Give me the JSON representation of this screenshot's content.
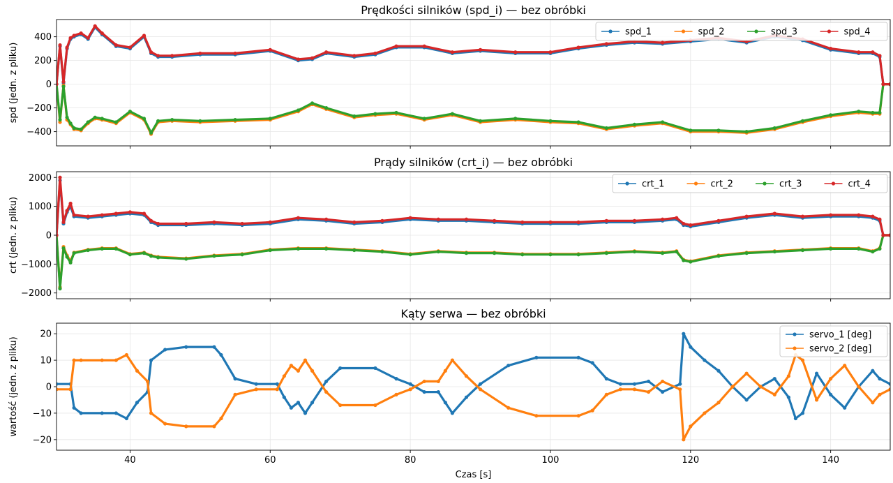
{
  "chart_data": [
    {
      "type": "line",
      "title": "Prędkości silników (spd_i) — bez obróbki",
      "xlabel": "",
      "ylabel": "spd (jedn. z pliku)",
      "xlim": [
        29.5,
        148.5
      ],
      "ylim": [
        -520,
        545
      ],
      "yticks": [
        -400,
        -200,
        0,
        200,
        400
      ],
      "xticks": [
        40,
        60,
        80,
        100,
        120,
        140
      ],
      "show_xtick_labels": false,
      "legend": "top-right",
      "legend_cols": 4,
      "x": [
        29.5,
        30,
        30.5,
        31,
        31.5,
        32,
        33,
        34,
        35,
        36,
        38,
        40,
        42,
        43,
        44,
        46,
        50,
        55,
        60,
        64,
        66,
        68,
        72,
        75,
        78,
        82,
        86,
        90,
        95,
        100,
        104,
        108,
        112,
        116,
        120,
        124,
        128,
        132,
        136,
        140,
        144,
        146,
        147,
        147.5,
        148.5
      ],
      "series": [
        {
          "name": "spd_1",
          "color": "#1f77b4",
          "values": [
            0,
            320,
            10,
            300,
            380,
            400,
            420,
            380,
            480,
            420,
            320,
            300,
            400,
            260,
            230,
            230,
            250,
            250,
            280,
            200,
            210,
            260,
            230,
            250,
            310,
            310,
            260,
            280,
            260,
            260,
            300,
            330,
            350,
            340,
            360,
            380,
            350,
            400,
            370,
            290,
            260,
            260,
            230,
            0,
            0
          ]
        },
        {
          "name": "spd_2",
          "color": "#ff7f0e",
          "values": [
            0,
            -320,
            -10,
            -300,
            -340,
            -380,
            -390,
            -330,
            -290,
            -300,
            -330,
            -240,
            -300,
            -420,
            -320,
            -310,
            -320,
            -310,
            -300,
            -230,
            -170,
            -210,
            -280,
            -260,
            -250,
            -300,
            -260,
            -320,
            -300,
            -320,
            -330,
            -380,
            -350,
            -330,
            -400,
            -400,
            -410,
            -380,
            -320,
            -270,
            -240,
            -250,
            -250,
            0,
            0
          ]
        },
        {
          "name": "spd_3",
          "color": "#2ca02c",
          "values": [
            0,
            -300,
            -20,
            -280,
            -330,
            -370,
            -380,
            -320,
            -280,
            -290,
            -320,
            -230,
            -290,
            -410,
            -310,
            -300,
            -310,
            -300,
            -290,
            -220,
            -160,
            -200,
            -270,
            -250,
            -240,
            -290,
            -250,
            -310,
            -290,
            -310,
            -320,
            -370,
            -340,
            -320,
            -390,
            -390,
            -400,
            -370,
            -310,
            -260,
            -230,
            -240,
            -240,
            0,
            0
          ]
        },
        {
          "name": "spd_4",
          "color": "#d62728",
          "values": [
            0,
            330,
            20,
            310,
            390,
            410,
            430,
            390,
            490,
            430,
            330,
            310,
            410,
            270,
            240,
            240,
            260,
            260,
            290,
            210,
            220,
            270,
            240,
            260,
            320,
            320,
            270,
            290,
            270,
            270,
            310,
            340,
            360,
            350,
            370,
            390,
            360,
            410,
            380,
            300,
            270,
            270,
            240,
            0,
            0
          ]
        }
      ]
    },
    {
      "type": "line",
      "title": "Prądy silników (crt_i) — bez obróbki",
      "xlabel": "",
      "ylabel": "crt (jedn. z pliku)",
      "xlim": [
        29.5,
        148.5
      ],
      "ylim": [
        -2200,
        2200
      ],
      "yticks": [
        -2000,
        -1000,
        0,
        1000,
        2000
      ],
      "xticks": [
        40,
        60,
        80,
        100,
        120,
        140
      ],
      "show_xtick_labels": false,
      "legend": "top-right",
      "legend_cols": 4,
      "x": [
        29.5,
        30,
        30.5,
        31,
        31.5,
        32,
        34,
        36,
        38,
        40,
        42,
        43,
        44,
        48,
        52,
        56,
        60,
        64,
        68,
        72,
        76,
        80,
        84,
        88,
        92,
        96,
        100,
        104,
        108,
        112,
        116,
        118,
        119,
        120,
        124,
        128,
        132,
        136,
        140,
        144,
        146,
        147,
        147.5,
        148.5
      ],
      "series": [
        {
          "name": "crt_1",
          "color": "#1f77b4",
          "values": [
            0,
            1900,
            400,
            800,
            1000,
            650,
            600,
            650,
            700,
            750,
            700,
            450,
            350,
            350,
            400,
            350,
            400,
            550,
            500,
            400,
            450,
            550,
            500,
            500,
            450,
            400,
            400,
            400,
            450,
            450,
            500,
            550,
            350,
            300,
            450,
            600,
            700,
            600,
            650,
            650,
            600,
            500,
            0,
            0
          ]
        },
        {
          "name": "crt_2",
          "color": "#ff7f0e",
          "values": [
            0,
            -1800,
            -400,
            -700,
            -900,
            -600,
            -500,
            -450,
            -450,
            -650,
            -600,
            -700,
            -750,
            -800,
            -700,
            -650,
            -500,
            -450,
            -450,
            -500,
            -550,
            -650,
            -550,
            -600,
            -600,
            -650,
            -650,
            -650,
            -600,
            -550,
            -600,
            -550,
            -850,
            -900,
            -700,
            -600,
            -550,
            -500,
            -450,
            -450,
            -550,
            -450,
            0,
            0
          ]
        },
        {
          "name": "crt_3",
          "color": "#2ca02c",
          "values": [
            0,
            -1850,
            -450,
            -750,
            -950,
            -620,
            -520,
            -470,
            -470,
            -670,
            -620,
            -720,
            -770,
            -820,
            -720,
            -670,
            -520,
            -470,
            -470,
            -520,
            -570,
            -670,
            -570,
            -620,
            -620,
            -670,
            -670,
            -670,
            -620,
            -570,
            -620,
            -570,
            -870,
            -920,
            -720,
            -620,
            -570,
            -520,
            -470,
            -470,
            -570,
            -470,
            0,
            0
          ]
        },
        {
          "name": "crt_4",
          "color": "#d62728",
          "values": [
            0,
            2000,
            450,
            850,
            1100,
            700,
            650,
            700,
            750,
            800,
            750,
            500,
            400,
            400,
            450,
            400,
            450,
            600,
            550,
            450,
            500,
            600,
            550,
            550,
            500,
            450,
            450,
            450,
            500,
            500,
            550,
            600,
            400,
            350,
            500,
            650,
            750,
            650,
            700,
            700,
            650,
            550,
            0,
            0
          ]
        }
      ]
    },
    {
      "type": "line",
      "title": "Kąty serwa — bez obróbki",
      "xlabel": "Czas [s]",
      "ylabel": "wartość (jedn. z pliku)",
      "xlim": [
        29.5,
        148.5
      ],
      "ylim": [
        -24,
        24
      ],
      "yticks": [
        -20,
        -10,
        0,
        10,
        20
      ],
      "xticks": [
        40,
        60,
        80,
        100,
        120,
        140
      ],
      "show_xtick_labels": true,
      "legend": "top-right",
      "legend_cols": 1,
      "x": [
        29.5,
        31.5,
        32,
        33,
        36,
        38,
        39.5,
        41,
        42.5,
        43,
        45,
        48,
        52,
        53,
        55,
        58,
        61,
        62,
        63,
        64,
        65,
        66,
        68,
        70,
        75,
        78,
        80,
        82,
        84,
        85,
        86,
        88,
        90,
        94,
        98,
        104,
        106,
        108,
        110,
        112,
        114,
        116,
        118.5,
        119,
        120,
        122,
        124,
        126,
        128,
        130,
        132,
        134,
        135,
        136,
        138,
        140,
        142,
        144,
        146,
        147,
        148.5
      ],
      "series": [
        {
          "name": "servo_1 [deg]",
          "color": "#1f77b4",
          "values": [
            1,
            1,
            -8,
            -10,
            -10,
            -10,
            -12,
            -6,
            -2,
            10,
            14,
            15,
            15,
            12,
            3,
            1,
            1,
            -4,
            -8,
            -6,
            -10,
            -6,
            2,
            7,
            7,
            3,
            1,
            -2,
            -2,
            -6,
            -10,
            -4,
            1,
            8,
            11,
            11,
            9,
            3,
            1,
            1,
            2,
            -2,
            1,
            20,
            15,
            10,
            6,
            0,
            -5,
            0,
            3,
            -4,
            -12,
            -10,
            5,
            -3,
            -8,
            0,
            6,
            3,
            1
          ]
        },
        {
          "name": "servo_2 [deg]",
          "color": "#ff7f0e",
          "values": [
            -1,
            -1,
            10,
            10,
            10,
            10,
            12,
            6,
            2,
            -10,
            -14,
            -15,
            -15,
            -12,
            -3,
            -1,
            -1,
            4,
            8,
            6,
            10,
            6,
            -2,
            -7,
            -7,
            -3,
            -1,
            2,
            2,
            6,
            10,
            4,
            -1,
            -8,
            -11,
            -11,
            -9,
            -3,
            -1,
            -1,
            -2,
            2,
            -1,
            -20,
            -15,
            -10,
            -6,
            0,
            5,
            0,
            -3,
            4,
            12,
            10,
            -5,
            3,
            8,
            0,
            -6,
            -3,
            -1
          ]
        }
      ]
    }
  ]
}
